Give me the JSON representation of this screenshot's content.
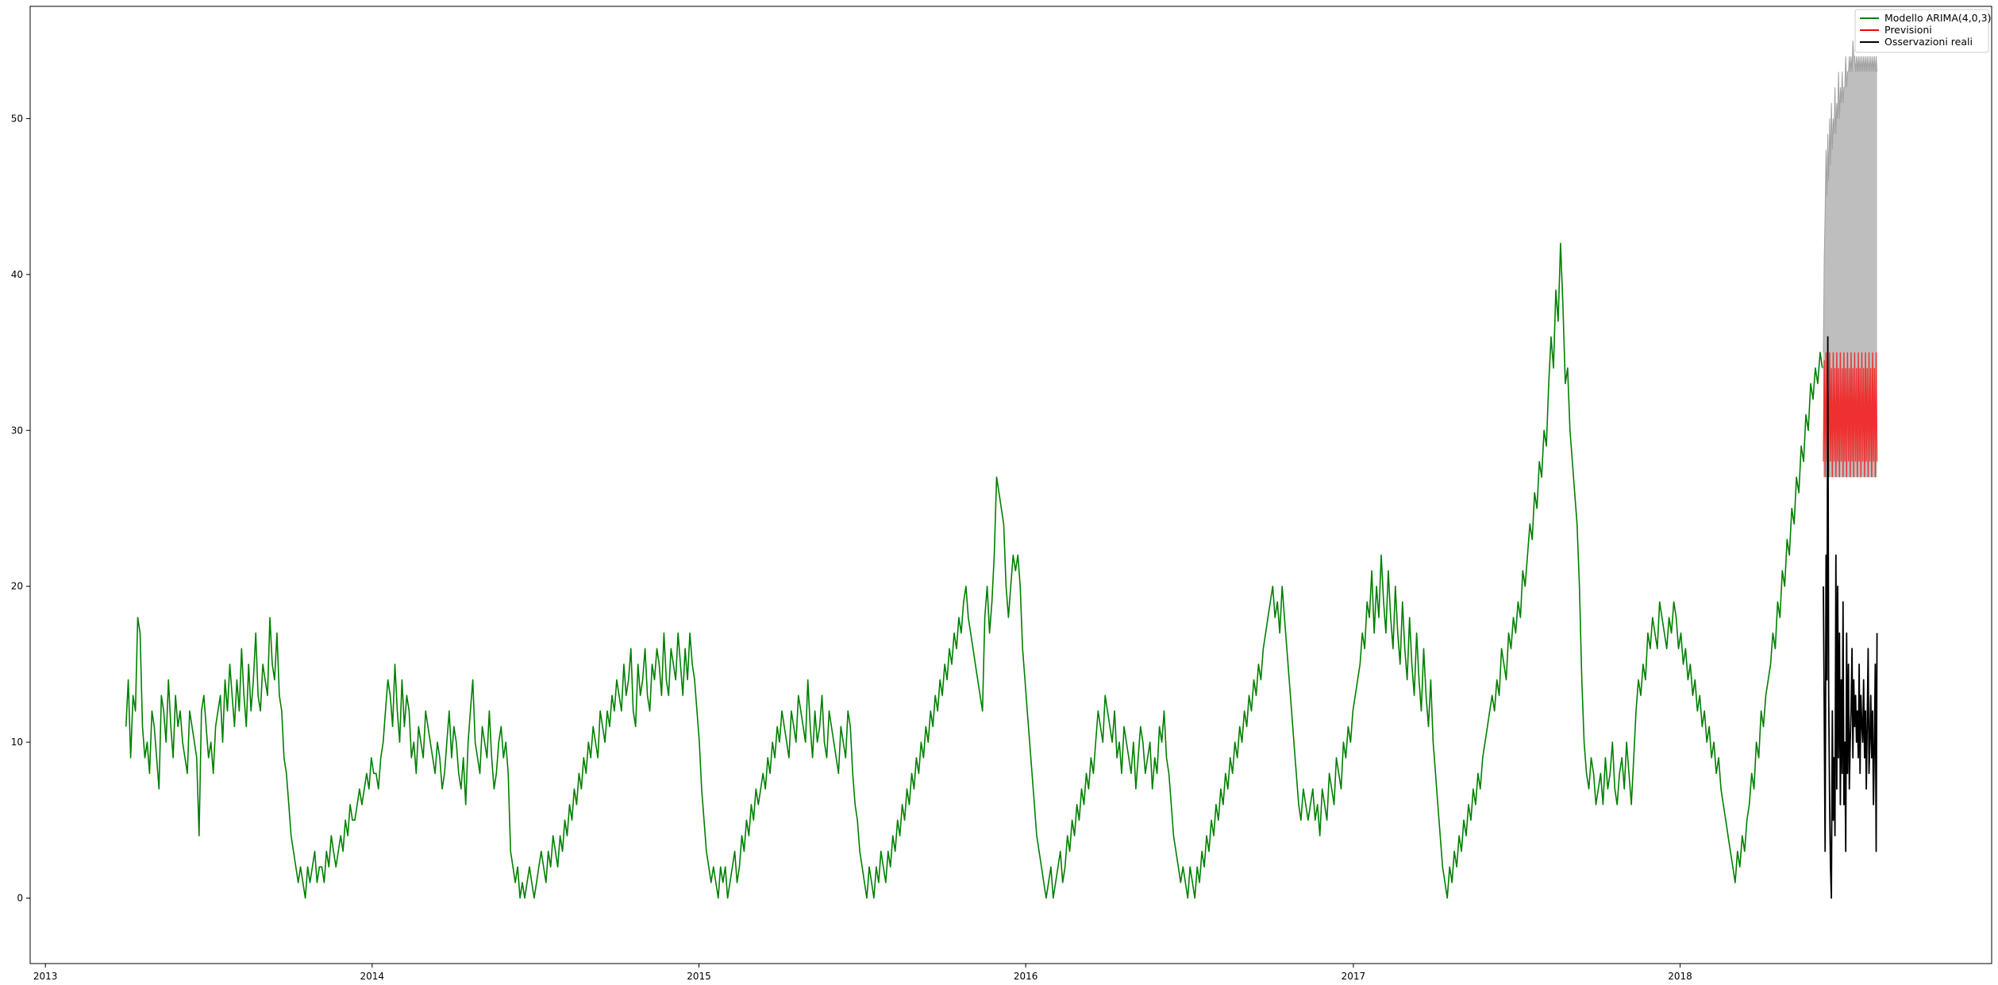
{
  "chart_data": {
    "type": "line",
    "title": "",
    "xlabel": "",
    "ylabel": "",
    "xlim": [
      "2012-12-15",
      "2018-12-15"
    ],
    "ylim": [
      -4.2,
      57.2
    ],
    "grid": false,
    "legend_position": "top-right",
    "x_ticks": [
      "2013",
      "2014",
      "2015",
      "2016",
      "2017",
      "2018"
    ],
    "y_ticks": [
      0,
      10,
      20,
      30,
      40,
      50
    ],
    "fitted": {
      "name": "Modello ARIMA(4,0,3)",
      "color": "#008000",
      "start": "2013-04-01",
      "end": "2018-06-09",
      "values": [
        11,
        14,
        9,
        13,
        12,
        18,
        17,
        11,
        9,
        10,
        8,
        12,
        11,
        9,
        7,
        13,
        12,
        10,
        14,
        11,
        9,
        13,
        11,
        12,
        10,
        9,
        8,
        12,
        11,
        10,
        9,
        4,
        12,
        13,
        11,
        9,
        10,
        8,
        11,
        12,
        13,
        10,
        14,
        12,
        15,
        13,
        11,
        14,
        12,
        16,
        13,
        11,
        15,
        12,
        14,
        17,
        13,
        12,
        15,
        14,
        13,
        18,
        15,
        14,
        17,
        13,
        12,
        9,
        8,
        6,
        4,
        3,
        2,
        1,
        2,
        1,
        0,
        2,
        1,
        2,
        3,
        1,
        2,
        2,
        1,
        3,
        2,
        4,
        3,
        2,
        3,
        4,
        3,
        5,
        4,
        6,
        5,
        5,
        6,
        7,
        6,
        7,
        8,
        7,
        9,
        8,
        8,
        7,
        9,
        10,
        12,
        14,
        13,
        11,
        15,
        12,
        10,
        14,
        11,
        13,
        12,
        9,
        10,
        8,
        11,
        10,
        9,
        12,
        11,
        10,
        9,
        8,
        10,
        9,
        7,
        8,
        10,
        12,
        9,
        11,
        10,
        8,
        7,
        9,
        6,
        10,
        12,
        14,
        10,
        9,
        8,
        11,
        10,
        9,
        12,
        9,
        7,
        8,
        10,
        11,
        9,
        10,
        8,
        3,
        2,
        1,
        2,
        0,
        1,
        0,
        1,
        2,
        1,
        0,
        1,
        2,
        3,
        2,
        1,
        3,
        2,
        4,
        3,
        2,
        4,
        3,
        5,
        4,
        6,
        5,
        7,
        6,
        8,
        7,
        9,
        8,
        10,
        9,
        11,
        10,
        9,
        12,
        11,
        10,
        12,
        11,
        13,
        12,
        14,
        13,
        12,
        15,
        13,
        14,
        16,
        12,
        11,
        15,
        13,
        14,
        16,
        13,
        12,
        15,
        14,
        16,
        15,
        13,
        17,
        14,
        13,
        16,
        15,
        14,
        17,
        15,
        13,
        16,
        14,
        17,
        15,
        14,
        12,
        10,
        7,
        5,
        3,
        2,
        1,
        2,
        1,
        0,
        2,
        1,
        2,
        0,
        1,
        2,
        3,
        1,
        2,
        4,
        3,
        5,
        4,
        6,
        5,
        7,
        6,
        7,
        8,
        7,
        9,
        8,
        10,
        9,
        11,
        10,
        12,
        11,
        10,
        9,
        12,
        11,
        10,
        13,
        12,
        11,
        10,
        14,
        11,
        9,
        12,
        10,
        11,
        13,
        10,
        9,
        12,
        11,
        10,
        9,
        8,
        11,
        10,
        9,
        12,
        11,
        8,
        6,
        5,
        3,
        2,
        1,
        0,
        2,
        1,
        0,
        2,
        1,
        3,
        2,
        1,
        3,
        2,
        4,
        3,
        5,
        4,
        6,
        5,
        7,
        6,
        8,
        7,
        9,
        8,
        10,
        9,
        11,
        10,
        12,
        11,
        13,
        12,
        14,
        13,
        15,
        14,
        16,
        15,
        17,
        16,
        18,
        17,
        19,
        20,
        18,
        17,
        16,
        15,
        14,
        13,
        12,
        18,
        20,
        17,
        19,
        22,
        27,
        26,
        25,
        24,
        20,
        18,
        20,
        22,
        21,
        22,
        20,
        16,
        14,
        12,
        10,
        8,
        6,
        4,
        3,
        2,
        1,
        0,
        1,
        2,
        0,
        1,
        2,
        3,
        1,
        2,
        4,
        3,
        5,
        4,
        6,
        5,
        7,
        6,
        8,
        7,
        9,
        8,
        10,
        12,
        11,
        10,
        13,
        12,
        11,
        10,
        12,
        9,
        10,
        8,
        11,
        10,
        9,
        8,
        10,
        7,
        9,
        11,
        10,
        8,
        9,
        10,
        7,
        9,
        8,
        11,
        10,
        12,
        9,
        8,
        6,
        4,
        3,
        2,
        1,
        2,
        1,
        0,
        2,
        1,
        0,
        2,
        1,
        3,
        2,
        4,
        3,
        5,
        4,
        6,
        5,
        7,
        6,
        8,
        7,
        9,
        8,
        10,
        9,
        11,
        10,
        12,
        11,
        13,
        12,
        14,
        13,
        15,
        14,
        16,
        17,
        18,
        19,
        20,
        18,
        19,
        17,
        20,
        18,
        16,
        14,
        12,
        10,
        8,
        6,
        5,
        7,
        6,
        5,
        6,
        7,
        5,
        6,
        4,
        7,
        6,
        5,
        8,
        7,
        6,
        9,
        8,
        7,
        10,
        9,
        11,
        10,
        12,
        13,
        14,
        15,
        17,
        16,
        19,
        18,
        21,
        17,
        20,
        18,
        22,
        19,
        17,
        21,
        18,
        16,
        20,
        17,
        15,
        19,
        16,
        14,
        18,
        15,
        13,
        17,
        14,
        12,
        16,
        13,
        11,
        14,
        10,
        8,
        6,
        4,
        2,
        1,
        0,
        2,
        1,
        3,
        2,
        4,
        3,
        5,
        4,
        6,
        5,
        7,
        6,
        8,
        7,
        9,
        10,
        11,
        12,
        13,
        12,
        14,
        13,
        16,
        15,
        14,
        17,
        16,
        18,
        17,
        19,
        18,
        21,
        20,
        22,
        24,
        23,
        26,
        25,
        28,
        27,
        30,
        29,
        33,
        36,
        34,
        39,
        37,
        42,
        38,
        33,
        34,
        30,
        28,
        26,
        24,
        20,
        14,
        10,
        8,
        7,
        9,
        8,
        6,
        7,
        8,
        6,
        9,
        7,
        8,
        10,
        7,
        6,
        8,
        9,
        7,
        10,
        8,
        6,
        9,
        12,
        14,
        13,
        15,
        14,
        17,
        16,
        18,
        17,
        16,
        19,
        18,
        17,
        16,
        18,
        17,
        19,
        18,
        16,
        17,
        15,
        16,
        14,
        15,
        13,
        14,
        12,
        13,
        11,
        12,
        10,
        11,
        9,
        10,
        8,
        9,
        7,
        6,
        5,
        4,
        3,
        2,
        1,
        3,
        2,
        4,
        3,
        5,
        6,
        8,
        7,
        10,
        9,
        12,
        11,
        13,
        14,
        15,
        17,
        16,
        19,
        18,
        21,
        20,
        23,
        22,
        25,
        24,
        27,
        26,
        29,
        28,
        31,
        30,
        33,
        32,
        34,
        33,
        35,
        34
      ]
    },
    "forecast": {
      "name": "Previsioni",
      "color": "#ff0000",
      "start": "2018-06-10",
      "end": "2018-08-09",
      "values": [
        28,
        34.5,
        27,
        35,
        28,
        34,
        27,
        35,
        28,
        34,
        27,
        35,
        28,
        34,
        27,
        35,
        28,
        34,
        27,
        35,
        28,
        34,
        27,
        35,
        28,
        34,
        27,
        35,
        28,
        34,
        27,
        35,
        28,
        34,
        27,
        35,
        28,
        34,
        27,
        35,
        28,
        34,
        27,
        35,
        28,
        34,
        27,
        35,
        28,
        34,
        27,
        35,
        28,
        34,
        27,
        35,
        28,
        34,
        27,
        35,
        28
      ],
      "upper": [
        35,
        41,
        44,
        48,
        45,
        49,
        46,
        50,
        47,
        51,
        48,
        50,
        49,
        52,
        49,
        51,
        50,
        53,
        50,
        52,
        51,
        53,
        51,
        52,
        52,
        54,
        52,
        53,
        53,
        54,
        53,
        54,
        53,
        55,
        54,
        54,
        53,
        54,
        53,
        54,
        53,
        54,
        53,
        54,
        53,
        54,
        53,
        54,
        53,
        54,
        53,
        54,
        53,
        54,
        53,
        54,
        53,
        54,
        53,
        54,
        53
      ],
      "lower": [
        27,
        27,
        27,
        27,
        27,
        27,
        27,
        27,
        27,
        27,
        27,
        27,
        27,
        27,
        27,
        27,
        27,
        27,
        27,
        27,
        27,
        27,
        27,
        27,
        27,
        27,
        27,
        27,
        27,
        27,
        27,
        27,
        27,
        27,
        27,
        27,
        27,
        27,
        27,
        27,
        27,
        27,
        27,
        27,
        27,
        27,
        27,
        27,
        27,
        27,
        27,
        27,
        27,
        27,
        27,
        27,
        27,
        27,
        27,
        27,
        27
      ],
      "band_color": "#bebebe"
    },
    "observed": {
      "name": "Osservazioni reali",
      "color": "#000000",
      "start": "2018-06-10",
      "end": "2018-08-09",
      "values": [
        20,
        12,
        3,
        22,
        14,
        36,
        13,
        6,
        2,
        0,
        12,
        5,
        9,
        4,
        22,
        7,
        20,
        9,
        17,
        6,
        14,
        8,
        19,
        6,
        10,
        3,
        17,
        8,
        15,
        7,
        10,
        12,
        16,
        9,
        14,
        11,
        13,
        10,
        12,
        9,
        15,
        8,
        13,
        11,
        10,
        14,
        9,
        12,
        7,
        11,
        16,
        8,
        10,
        13,
        9,
        12,
        6,
        10,
        15,
        3,
        17
      ]
    }
  }
}
